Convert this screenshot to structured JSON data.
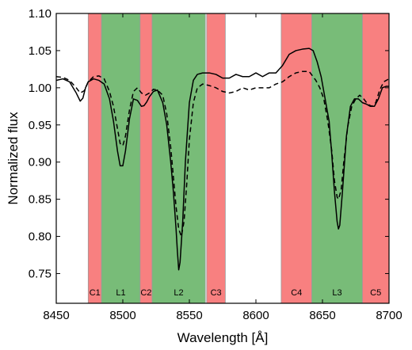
{
  "chart_data": {
    "type": "line",
    "title": "",
    "xlabel": "Wavelength [Å]",
    "ylabel": "Normalized flux",
    "xlim": [
      8450,
      8700
    ],
    "ylim": [
      0.71,
      1.1
    ],
    "x_ticks": [
      8450,
      8500,
      8550,
      8600,
      8650,
      8700
    ],
    "x_tick_labels": [
      "8450",
      "8500",
      "8550",
      "8600",
      "8650",
      "8700"
    ],
    "y_ticks": [
      0.75,
      0.8,
      0.85,
      0.9,
      0.95,
      1.0,
      1.05,
      1.1
    ],
    "y_tick_labels": [
      "0.75",
      "0.80",
      "0.85",
      "0.90",
      "0.95",
      "1.00",
      "1.05",
      "1.10"
    ],
    "grid": false,
    "legend": "none",
    "colors": {
      "continuum_band": "#f88080",
      "line_band": "#78bc78",
      "band_edge": "#999999",
      "series": "#000000"
    },
    "bands": [
      {
        "label": "C1",
        "kind": "continuum",
        "range": [
          8474,
          8484
        ]
      },
      {
        "label": "L1",
        "kind": "line",
        "range": [
          8484,
          8513
        ]
      },
      {
        "label": "C2",
        "kind": "continuum",
        "range": [
          8513,
          8522
        ]
      },
      {
        "label": "L2",
        "kind": "line",
        "range": [
          8522,
          8562
        ]
      },
      {
        "label": "C3",
        "kind": "continuum",
        "range": [
          8563,
          8577
        ]
      },
      {
        "label": "C4",
        "kind": "continuum",
        "range": [
          8619,
          8642
        ]
      },
      {
        "label": "L3",
        "kind": "line",
        "range": [
          8642,
          8680
        ]
      },
      {
        "label": "C5",
        "kind": "continuum",
        "range": [
          8680,
          8700
        ]
      }
    ],
    "series": [
      {
        "style": "solid",
        "x": [
          8450,
          8455,
          8460,
          8465,
          8468,
          8470,
          8472,
          8474,
          8478,
          8482,
          8486,
          8490,
          8493,
          8496,
          8498,
          8500,
          8502,
          8505,
          8508,
          8511,
          8514,
          8516,
          8518,
          8520,
          8523,
          8526,
          8530,
          8533,
          8536,
          8538,
          8540,
          8541,
          8542,
          8543,
          8545,
          8547,
          8550,
          8553,
          8556,
          8560,
          8565,
          8570,
          8575,
          8580,
          8585,
          8590,
          8595,
          8600,
          8605,
          8610,
          8615,
          8620,
          8625,
          8630,
          8635,
          8640,
          8643,
          8646,
          8649,
          8652,
          8655,
          8657,
          8659,
          8661,
          8662,
          8663,
          8665,
          8668,
          8671,
          8674,
          8677,
          8680,
          8683,
          8686,
          8689,
          8692,
          8695,
          8698,
          8700
        ],
        "y": [
          1.01,
          1.012,
          1.008,
          0.993,
          0.982,
          0.986,
          1.0,
          1.008,
          1.012,
          1.01,
          1.005,
          0.985,
          0.955,
          0.915,
          0.895,
          0.895,
          0.915,
          0.958,
          0.985,
          0.983,
          0.975,
          0.976,
          0.981,
          0.988,
          0.995,
          0.997,
          0.98,
          0.95,
          0.9,
          0.86,
          0.81,
          0.78,
          0.755,
          0.765,
          0.82,
          0.9,
          0.98,
          1.01,
          1.018,
          1.02,
          1.02,
          1.018,
          1.013,
          1.013,
          1.018,
          1.015,
          1.015,
          1.02,
          1.015,
          1.02,
          1.02,
          1.03,
          1.045,
          1.05,
          1.052,
          1.053,
          1.05,
          1.035,
          1.015,
          0.985,
          0.955,
          0.91,
          0.86,
          0.82,
          0.81,
          0.815,
          0.86,
          0.935,
          0.975,
          0.985,
          0.985,
          0.98,
          0.978,
          0.975,
          0.975,
          0.985,
          1.0,
          1.002,
          1.002
        ]
      },
      {
        "style": "dashed",
        "x": [
          8450,
          8455,
          8460,
          8465,
          8468,
          8471,
          8474,
          8478,
          8482,
          8486,
          8490,
          8493,
          8496,
          8498,
          8500,
          8502,
          8505,
          8508,
          8511,
          8514,
          8517,
          8520,
          8523,
          8526,
          8530,
          8533,
          8536,
          8538,
          8540,
          8542,
          8544,
          8546,
          8548,
          8550,
          8553,
          8556,
          8560,
          8565,
          8570,
          8575,
          8580,
          8585,
          8590,
          8595,
          8600,
          8605,
          8610,
          8615,
          8620,
          8625,
          8630,
          8635,
          8640,
          8645,
          8648,
          8651,
          8654,
          8657,
          8659,
          8661,
          8662,
          8664,
          8666,
          8669,
          8672,
          8675,
          8678,
          8681,
          8684,
          8687,
          8690,
          8693,
          8696,
          8700
        ],
        "y": [
          1.015,
          1.014,
          1.01,
          1.0,
          0.993,
          0.996,
          1.008,
          1.015,
          1.016,
          1.012,
          0.995,
          0.975,
          0.945,
          0.925,
          0.922,
          0.935,
          0.97,
          0.995,
          1.0,
          0.993,
          0.99,
          0.993,
          0.998,
          0.997,
          0.99,
          0.965,
          0.92,
          0.88,
          0.84,
          0.81,
          0.8,
          0.82,
          0.87,
          0.93,
          0.98,
          1.0,
          1.005,
          1.003,
          1.0,
          0.995,
          0.993,
          0.995,
          1.0,
          0.997,
          1.0,
          1.0,
          1.0,
          1.005,
          1.008,
          1.015,
          1.02,
          1.022,
          1.022,
          1.01,
          1.0,
          0.985,
          0.955,
          0.915,
          0.875,
          0.853,
          0.85,
          0.862,
          0.9,
          0.948,
          0.975,
          0.985,
          0.99,
          0.985,
          0.978,
          0.975,
          0.98,
          0.997,
          1.008,
          1.012
        ]
      }
    ]
  }
}
